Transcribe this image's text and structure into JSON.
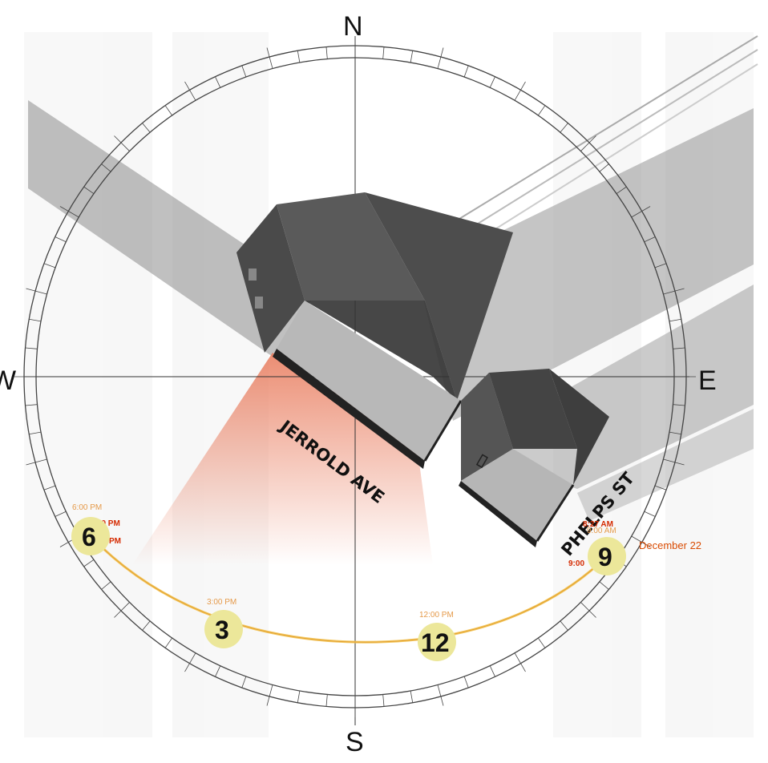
{
  "compass": {
    "north": "N",
    "south": "S",
    "east": "E",
    "west": "W"
  },
  "streets": {
    "primary": "JERROLD AVE",
    "secondary": "PHELPS ST"
  },
  "date_label": "December 22",
  "hour_markers": {
    "six": "6",
    "three": "3",
    "twelve": "12",
    "nine": "9"
  },
  "time_labels": {
    "west_top": "6:00 PM",
    "west_mid": "4:50 PM",
    "west_low": "PM",
    "three": "3:00 PM",
    "twelve": "12:00 PM",
    "east_red": "8:27 AM",
    "east_orange": "9:00 AM",
    "east_low": "9:00"
  },
  "colors": {
    "sun_path": "#f2c14e",
    "hour_circle": "#ece79a",
    "shadow": "#8c8c8c",
    "sun_glow": "#e8795a"
  }
}
